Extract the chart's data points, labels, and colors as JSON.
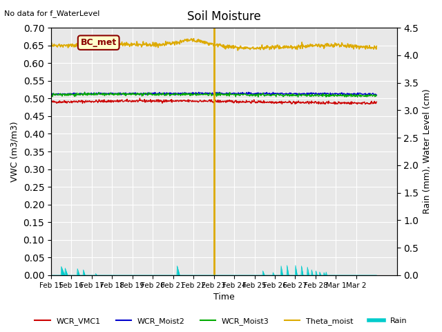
{
  "title": "Soil Moisture",
  "top_left_text": "No data for f_WaterLevel",
  "annotation_box": "BC_met",
  "xlabel": "Time",
  "ylabel_left": "VWC (m3/m3)",
  "ylabel_right": "Rain (mm), Water Level (cm)",
  "ylim_left": [
    0.0,
    0.7
  ],
  "ylim_right": [
    0.0,
    4.5
  ],
  "yticks_left": [
    0.0,
    0.05,
    0.1,
    0.15,
    0.2,
    0.25,
    0.3,
    0.35,
    0.4,
    0.45,
    0.5,
    0.55,
    0.6,
    0.65,
    0.7
  ],
  "yticks_right": [
    0.0,
    0.5,
    1.0,
    1.5,
    2.0,
    2.5,
    3.0,
    3.5,
    4.0,
    4.5
  ],
  "x_tick_positions": [
    0,
    1,
    2,
    3,
    4,
    5,
    6,
    7,
    8,
    9,
    10,
    11,
    12,
    13,
    14,
    15
  ],
  "x_tick_labels": [
    "Feb 15",
    "Feb 16",
    "Feb 17",
    "Feb 18",
    "Feb 19",
    "Feb 20",
    "Feb 21",
    "Feb 22",
    "Feb 23",
    "Feb 24",
    "Feb 25",
    "Feb 26",
    "Feb 27",
    "Feb 28",
    "Mar 1",
    "Mar 2"
  ],
  "xlim": [
    0,
    17
  ],
  "background_color": "#e8e8e8",
  "grid_color": "#ffffff",
  "colors": {
    "WCR_VMC1": "#cc0000",
    "WCR_Moist2": "#0000cc",
    "WCR_Moist3": "#00aa00",
    "Theta_moist": "#ddaa00",
    "Rain": "#00cccc"
  },
  "vline_x": 8.0,
  "vline_color": "#ddaa00"
}
